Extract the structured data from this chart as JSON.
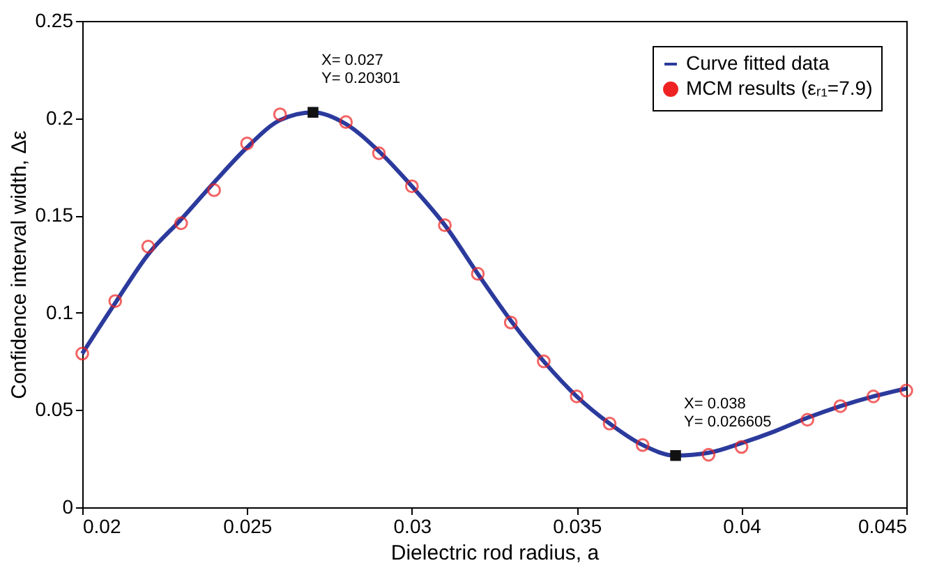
{
  "chart_data": {
    "type": "line",
    "xlabel": "Dielectric rod radius, a",
    "ylabel": "Confidence interval width, Δε",
    "x": [
      0.02,
      0.021,
      0.022,
      0.023,
      0.024,
      0.025,
      0.026,
      0.027,
      0.028,
      0.029,
      0.03,
      0.031,
      0.032,
      0.033,
      0.034,
      0.035,
      0.036,
      0.037,
      0.038,
      0.039,
      0.04,
      0.041,
      0.042,
      0.043,
      0.044,
      0.045
    ],
    "series": [
      {
        "name": "Curve fitted data",
        "color": "#2b3a9c",
        "marker": "none",
        "line_style": "solid",
        "values": [
          0.079,
          0.105,
          0.13,
          0.148,
          0.167,
          0.185,
          0.199,
          0.203,
          0.197,
          0.183,
          0.165,
          0.145,
          0.12,
          0.096,
          0.075,
          0.057,
          0.043,
          0.032,
          0.0266,
          0.028,
          0.033,
          0.039,
          0.046,
          0.052,
          0.057,
          0.061
        ]
      },
      {
        "name": "MCM results (εᵣ₁=7.9)",
        "type": "scatter",
        "color": "#ee2222",
        "marker": "circle",
        "values": [
          0.079,
          0.106,
          0.134,
          0.146,
          0.163,
          0.187,
          0.202,
          null,
          0.198,
          0.182,
          0.165,
          0.145,
          0.12,
          0.095,
          0.075,
          0.057,
          0.043,
          0.032,
          null,
          0.027,
          0.031,
          null,
          0.045,
          0.052,
          0.057,
          0.06
        ]
      }
    ],
    "annotations": [
      {
        "text": "X= 0.027\nY= 0.20301",
        "x": 0.027,
        "y": 0.20301
      },
      {
        "text": "X= 0.038\nY= 0.026605",
        "x": 0.038,
        "y": 0.026605
      }
    ],
    "xlim": [
      0.02,
      0.045
    ],
    "xticks": [
      0.02,
      0.025,
      0.03,
      0.035,
      0.04,
      0.045
    ],
    "ylim": [
      0,
      0.25
    ],
    "yticks": [
      0,
      0.05,
      0.1,
      0.15,
      0.2,
      0.25
    ],
    "grid": false,
    "legend": "top right"
  }
}
